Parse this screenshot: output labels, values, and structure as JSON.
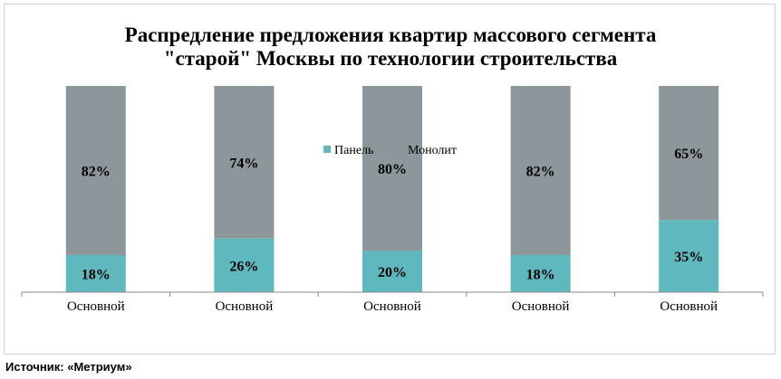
{
  "chart_data": {
    "type": "bar",
    "stacked": true,
    "title_lines": [
      "Распредление предложения квартир массового сегмента",
      "\"старой\" Москвы по технологии строительства"
    ],
    "categories": [
      "Основной",
      "Основной",
      "Основной",
      "Основной",
      "Основной"
    ],
    "series": [
      {
        "name": "Панель",
        "color": "#5fb8be",
        "values": [
          18,
          26,
          20,
          18,
          35
        ],
        "labels": [
          "18%",
          "26%",
          "20%",
          "18%",
          "35%"
        ]
      },
      {
        "name": "Монолит",
        "color": "#8d979b",
        "values": [
          82,
          74,
          80,
          82,
          65
        ],
        "labels": [
          "82%",
          "74%",
          "80%",
          "82%",
          "65%"
        ]
      }
    ],
    "ylim": [
      0,
      100
    ],
    "grid": false,
    "legend_position": "top-center"
  },
  "source_text": "Источник: «Метриум»"
}
